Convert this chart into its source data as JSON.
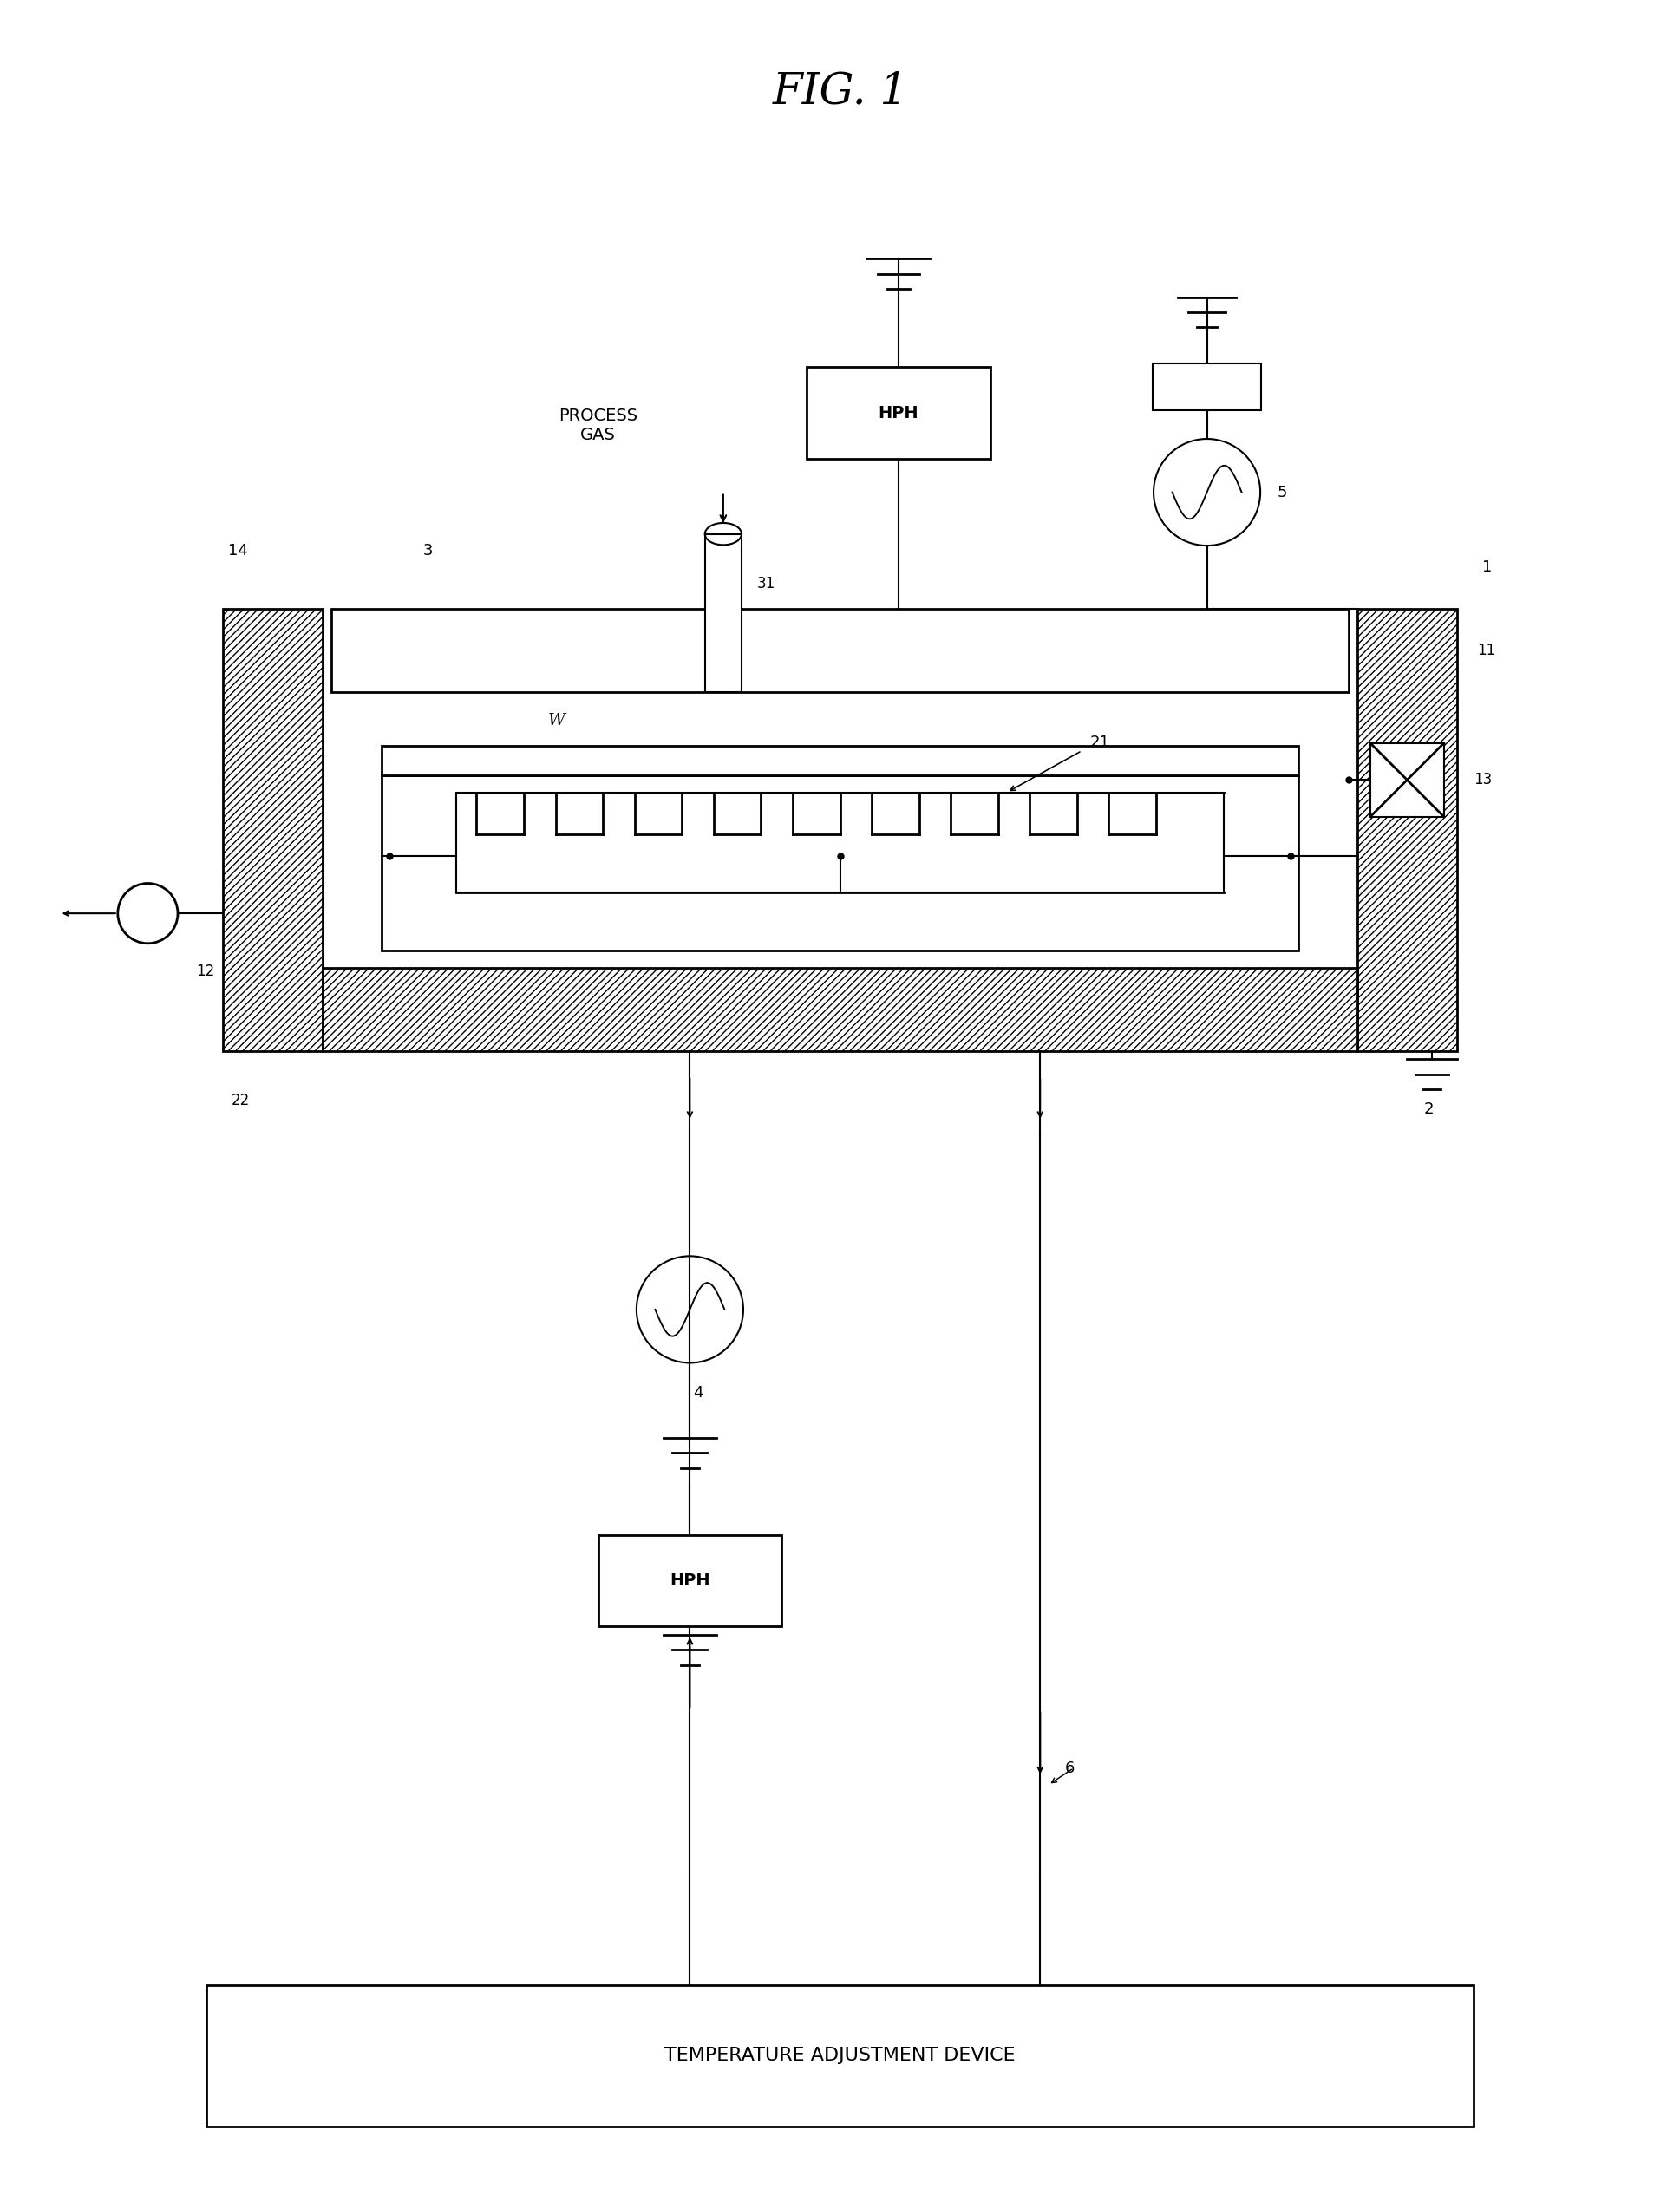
{
  "background_color": "#ffffff",
  "fig_width": 19.37,
  "fig_height": 25.39,
  "labels": {
    "title": "FIG. 1",
    "process_gas": "PROCESS\nGAS",
    "hph_top": "HPH",
    "hph_bottom": "HPH",
    "temp_device": "TEMPERATURE ADJUSTMENT DEVICE",
    "num_1": "1",
    "num_2": "2",
    "num_3": "3",
    "num_4": "4",
    "num_5": "5",
    "num_6": "6",
    "num_11": "11",
    "num_12": "12",
    "num_13": "13",
    "num_14": "14",
    "num_21": "21",
    "num_22": "22",
    "num_31": "31",
    "W": "W"
  }
}
